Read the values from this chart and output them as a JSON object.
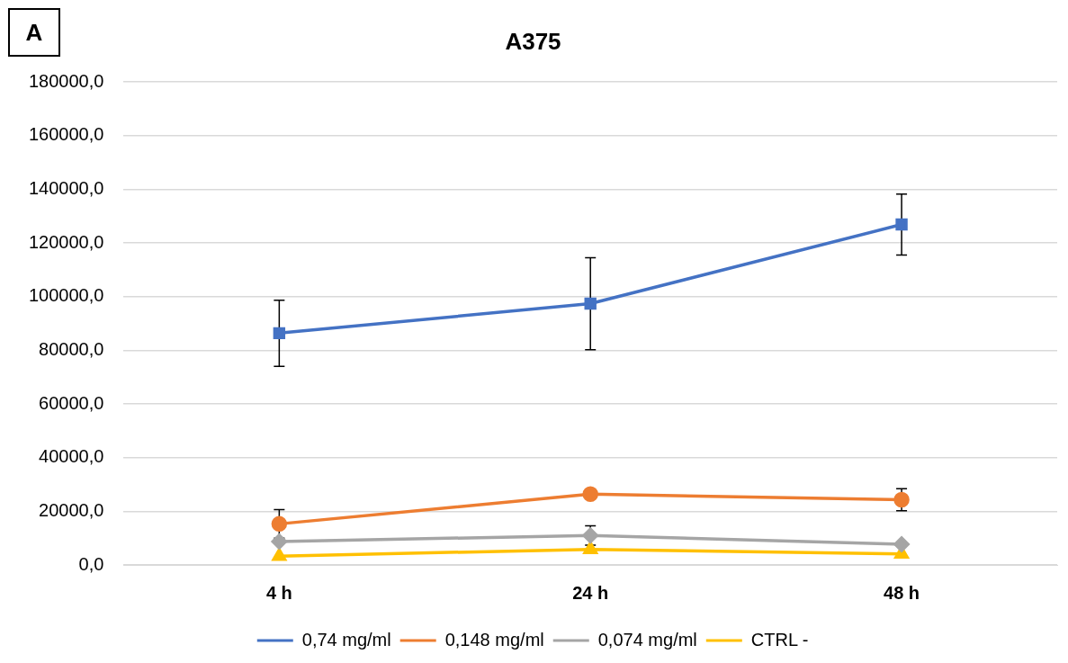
{
  "chart_data": {
    "type": "line",
    "title": "A375",
    "annotations": [
      "A"
    ],
    "categories": [
      "4 h",
      "24 h",
      "48 h"
    ],
    "series": [
      {
        "name": "0,74 mg/ml",
        "color": "#4472c4",
        "marker": "square",
        "values": [
          86400,
          97400,
          126900
        ],
        "errors": [
          [
            74000,
            98700
          ],
          [
            80200,
            114500
          ],
          [
            115500,
            138200
          ]
        ]
      },
      {
        "name": "0,148 mg/ml",
        "color": "#ed7d31",
        "marker": "circle",
        "values": [
          15300,
          26400,
          24300
        ],
        "errors": [
          5300,
          null,
          4100
        ]
      },
      {
        "name": "0,074 mg/ml",
        "color": "#a5a5a5",
        "marker": "diamond",
        "values": [
          8700,
          11000,
          7700
        ],
        "errors": [
          null,
          3600,
          null
        ]
      },
      {
        "name": "CTRL -",
        "color": "#ffc000",
        "marker": "triangle",
        "values": [
          3300,
          5800,
          4100
        ]
      }
    ],
    "ylim": [
      0,
      180000
    ],
    "yticks": [
      {
        "value": 0,
        "label": "0,0"
      },
      {
        "value": 20000,
        "label": "20000,0"
      },
      {
        "value": 40000,
        "label": "40000,0"
      },
      {
        "value": 60000,
        "label": "60000,0"
      },
      {
        "value": 80000,
        "label": "80000,0"
      },
      {
        "value": 100000,
        "label": "100000,0"
      },
      {
        "value": 120000,
        "label": "120000,0"
      },
      {
        "value": 140000,
        "label": "140000,0"
      },
      {
        "value": 160000,
        "label": "160000,0"
      },
      {
        "value": 180000,
        "label": "180000,0"
      }
    ],
    "grid": "y",
    "legend": "bottom"
  }
}
